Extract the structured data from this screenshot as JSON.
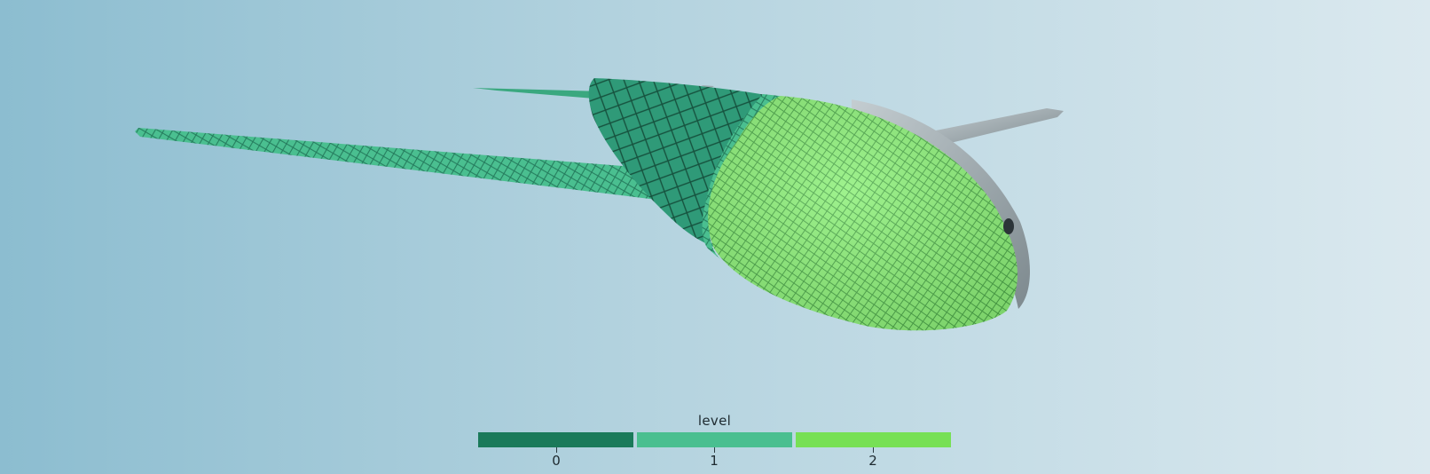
{
  "legend": {
    "title": "level",
    "entries": [
      {
        "label": "0",
        "color": "#1a7a5a"
      },
      {
        "label": "1",
        "color": "#4abf90"
      },
      {
        "label": "2",
        "color": "#77e055"
      }
    ]
  },
  "colors": {
    "background_left": "#8cbdd0",
    "background_right": "#dbe9ef",
    "fuselage_grey": "#9aa7ac"
  }
}
